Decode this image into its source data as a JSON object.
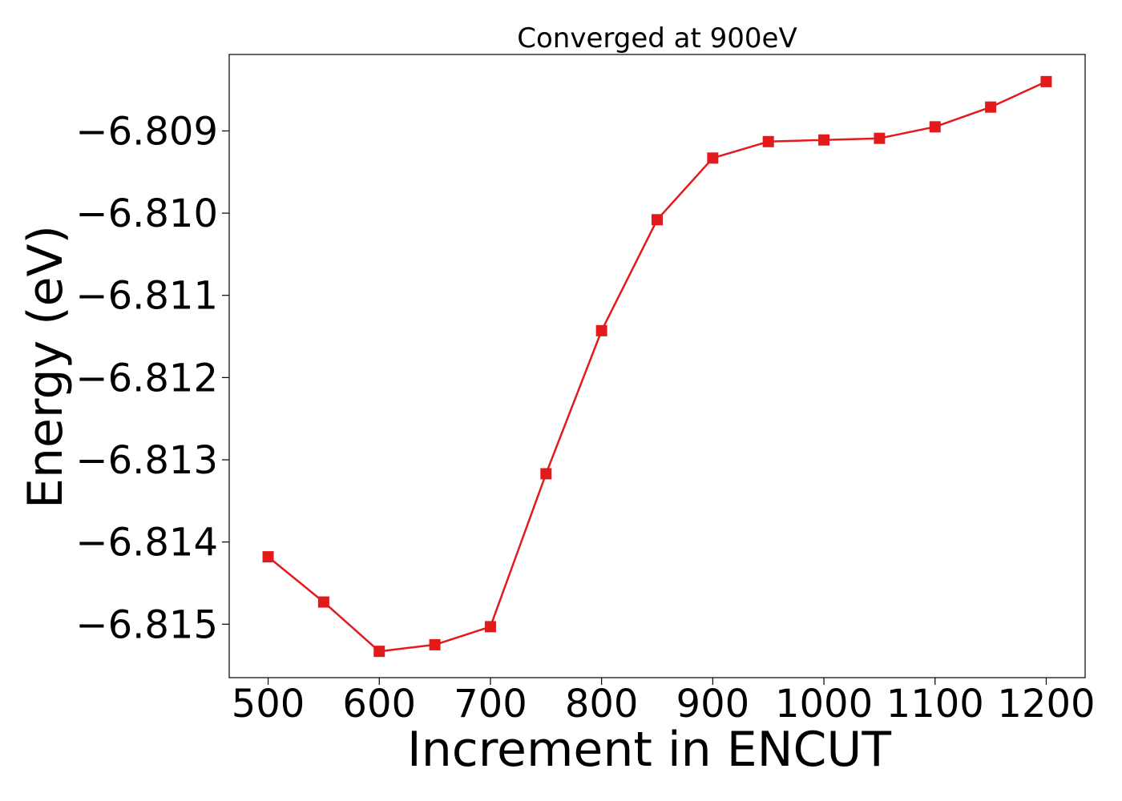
{
  "chart_data": {
    "type": "line",
    "title": "Converged at 900eV",
    "xlabel": "Increment in ENCUT",
    "ylabel": "Energy (eV)",
    "xlim": [
      465,
      1235
    ],
    "ylim": [
      -6.81565,
      -6.80807
    ],
    "xticks": [
      500,
      600,
      700,
      800,
      900,
      1000,
      1100,
      1200
    ],
    "yticks": [
      -6.815,
      -6.814,
      -6.813,
      -6.812,
      -6.811,
      -6.81,
      -6.809
    ],
    "ytick_labels": [
      "−6.815",
      "−6.814",
      "−6.813",
      "−6.812",
      "−6.811",
      "−6.810",
      "−6.809"
    ],
    "grid": false,
    "legend": "none",
    "series": [
      {
        "color": "#e31a1c",
        "marker": "square",
        "x": [
          500,
          550,
          600,
          650,
          700,
          750,
          800,
          850,
          900,
          950,
          1000,
          1050,
          1100,
          1150,
          1200
        ],
        "y": [
          -6.81418,
          -6.81473,
          -6.81533,
          -6.81525,
          -6.81503,
          -6.81317,
          -6.81143,
          -6.81008,
          -6.80933,
          -6.80913,
          -6.80911,
          -6.80909,
          -6.80895,
          -6.80871,
          -6.8084
        ]
      }
    ]
  }
}
